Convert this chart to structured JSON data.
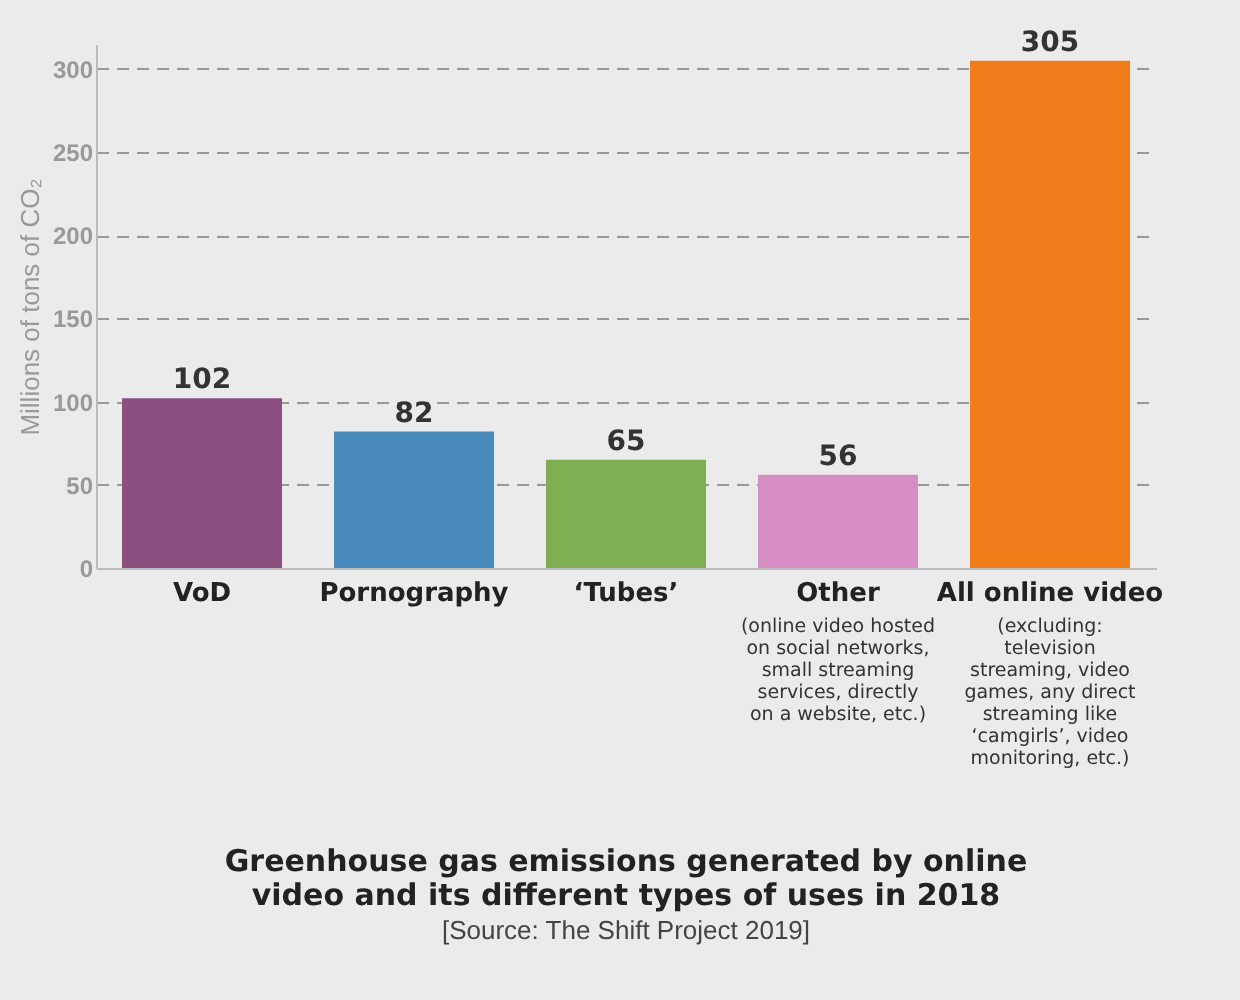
{
  "chart_data": {
    "type": "bar",
    "title": "Greenhouse gas emissions generated by online video and its different types of uses in 2018",
    "ylabel": "Millions of tons of CO₂",
    "categories": [
      "VoD",
      "Pornography",
      "‘Tubes’",
      "Other",
      "All online video"
    ],
    "values": [
      102,
      82,
      65,
      56,
      305
    ],
    "colors": [
      "#8b4f80",
      "#4a8bbd",
      "#7fae52",
      "#d58ec3",
      "#f07d1a"
    ],
    "ylim": [
      0,
      315
    ],
    "yticks": [
      0,
      50,
      100,
      150,
      200,
      250,
      300
    ],
    "grid": "y",
    "data_labels": true,
    "annotations": [
      "[Source: The Shift Project 2019]",
      "(online video hosted on social networks, small streaming services, directly on a website, etc.)",
      "(excluding: television streaming, video games, any direct streaming like ‘camgirls’, video monitoring, etc.)"
    ]
  }
}
